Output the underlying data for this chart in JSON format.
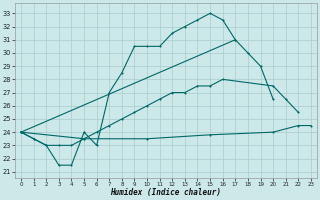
{
  "xlabel": "Humidex (Indice chaleur)",
  "xlim": [
    -0.5,
    23.5
  ],
  "ylim": [
    20.5,
    33.8
  ],
  "yticks": [
    21,
    22,
    23,
    24,
    25,
    26,
    27,
    28,
    29,
    30,
    31,
    32,
    33
  ],
  "xticks": [
    0,
    1,
    2,
    3,
    4,
    5,
    6,
    7,
    8,
    9,
    10,
    11,
    12,
    13,
    14,
    15,
    16,
    17,
    18,
    19,
    20,
    21,
    22,
    23
  ],
  "bg": "#cce8e8",
  "lc": "#006868",
  "gc": "#a8cccc",
  "curve1_x": [
    0,
    1,
    2,
    3,
    4,
    5,
    6,
    7,
    8,
    9,
    10,
    11,
    12,
    13,
    14,
    15,
    16,
    17
  ],
  "curve1_y": [
    24.0,
    23.5,
    23.0,
    21.5,
    21.5,
    24.0,
    23.0,
    27.0,
    28.5,
    30.5,
    30.5,
    30.5,
    31.5,
    32.0,
    32.5,
    33.0,
    32.5,
    31.0
  ],
  "curve2_x": [
    0,
    17,
    18,
    19,
    20
  ],
  "curve2_y": [
    24.0,
    31.0,
    30.0,
    29.0,
    26.5
  ],
  "curve3_x": [
    0,
    1,
    2,
    3,
    4,
    5,
    6,
    7,
    8,
    9,
    10,
    11,
    12,
    13,
    14,
    15,
    16,
    20,
    21,
    22
  ],
  "curve3_y": [
    24.0,
    23.5,
    23.0,
    23.0,
    23.0,
    23.5,
    24.0,
    24.5,
    25.0,
    25.5,
    26.0,
    26.5,
    27.0,
    27.0,
    27.5,
    27.5,
    28.0,
    27.5,
    26.5,
    25.5
  ],
  "curve4_x": [
    0,
    5,
    10,
    15,
    20,
    22,
    23
  ],
  "curve4_y": [
    24.0,
    23.5,
    23.5,
    23.8,
    24.0,
    24.5,
    24.5
  ]
}
